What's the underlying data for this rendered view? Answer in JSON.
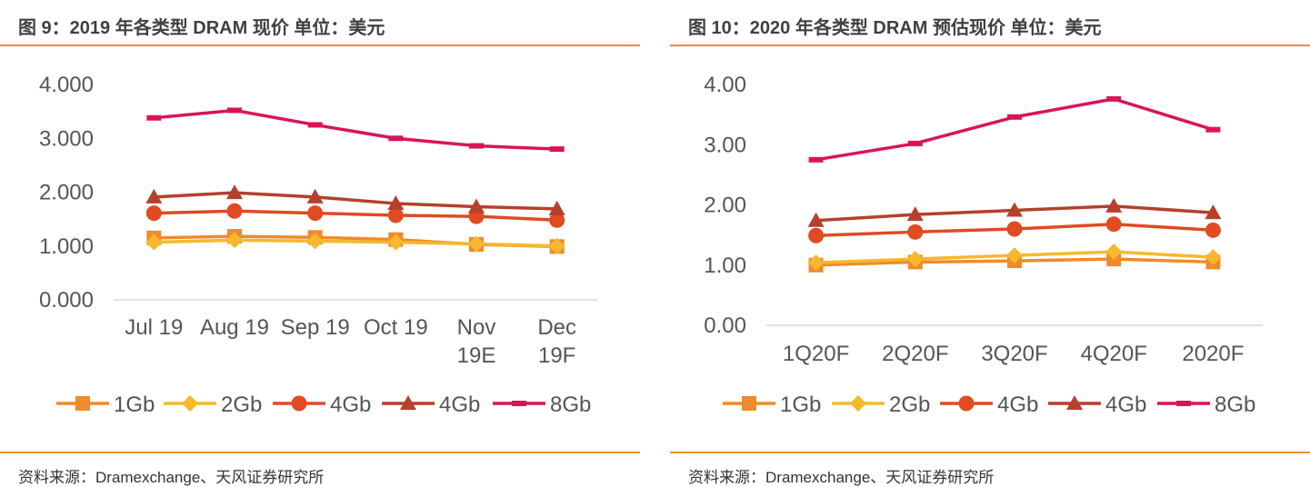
{
  "panels": [
    {
      "title": "图 9：2019 年各类型 DRAM 现价    单位：美元",
      "source": "资料来源：Dramexchange、天风证券研究所"
    },
    {
      "title": "图 10：2020 年各类型 DRAM 预估现价     单位：美元",
      "source": "资料来源：Dramexchange、天风证券研究所"
    }
  ],
  "chart_data": [
    {
      "type": "line",
      "title": "图 9：2019 年各类型 DRAM 现价    单位：美元",
      "categories": [
        [
          "Jul 19"
        ],
        [
          "Aug 19"
        ],
        [
          "Sep 19"
        ],
        [
          "Oct 19"
        ],
        [
          "Nov",
          "19E"
        ],
        [
          "Dec",
          "19F"
        ]
      ],
      "yticks": [
        "0.000",
        "1.000",
        "2.000",
        "3.000",
        "4.000"
      ],
      "ylim": [
        0,
        4
      ],
      "grid": false,
      "legend_position": "bottom",
      "series": [
        {
          "name": "1Gb",
          "marker": "square",
          "color": "#f08a2c",
          "values": [
            1.15,
            1.18,
            1.16,
            1.12,
            1.03,
            0.99
          ]
        },
        {
          "name": "2Gb",
          "marker": "diamond",
          "color": "#f5b82e",
          "values": [
            1.07,
            1.11,
            1.09,
            1.07,
            1.04,
            1.0
          ]
        },
        {
          "name": "4Gb",
          "marker": "circle",
          "color": "#e04b22",
          "values": [
            1.61,
            1.65,
            1.61,
            1.57,
            1.55,
            1.48
          ]
        },
        {
          "name": "4Gb",
          "marker": "triangle",
          "color": "#b4412c",
          "values": [
            1.91,
            1.99,
            1.91,
            1.79,
            1.73,
            1.69
          ]
        },
        {
          "name": "8Gb",
          "marker": "dash",
          "color": "#d9145a",
          "values": [
            3.38,
            3.52,
            3.25,
            3.0,
            2.86,
            2.8
          ]
        }
      ]
    },
    {
      "type": "line",
      "title": "图 10：2020 年各类型 DRAM 预估现价     单位：美元",
      "categories": [
        [
          "1Q20F"
        ],
        [
          "2Q20F"
        ],
        [
          "3Q20F"
        ],
        [
          "4Q20F"
        ],
        [
          "2020F"
        ]
      ],
      "yticks": [
        "0.00",
        "1.00",
        "2.00",
        "3.00",
        "4.00"
      ],
      "ylim": [
        0,
        4
      ],
      "grid": false,
      "legend_position": "bottom",
      "series": [
        {
          "name": "1Gb",
          "marker": "square",
          "color": "#f08a2c",
          "values": [
            1.0,
            1.05,
            1.07,
            1.1,
            1.05
          ]
        },
        {
          "name": "2Gb",
          "marker": "diamond",
          "color": "#f5b82e",
          "values": [
            1.04,
            1.1,
            1.16,
            1.22,
            1.13
          ]
        },
        {
          "name": "4Gb",
          "marker": "circle",
          "color": "#e04b22",
          "values": [
            1.49,
            1.55,
            1.6,
            1.68,
            1.58
          ]
        },
        {
          "name": "4Gb",
          "marker": "triangle",
          "color": "#b4412c",
          "values": [
            1.74,
            1.84,
            1.91,
            1.98,
            1.87
          ]
        },
        {
          "name": "8Gb",
          "marker": "dash",
          "color": "#d9145a",
          "values": [
            2.75,
            3.02,
            3.46,
            3.76,
            3.25
          ]
        }
      ]
    }
  ]
}
